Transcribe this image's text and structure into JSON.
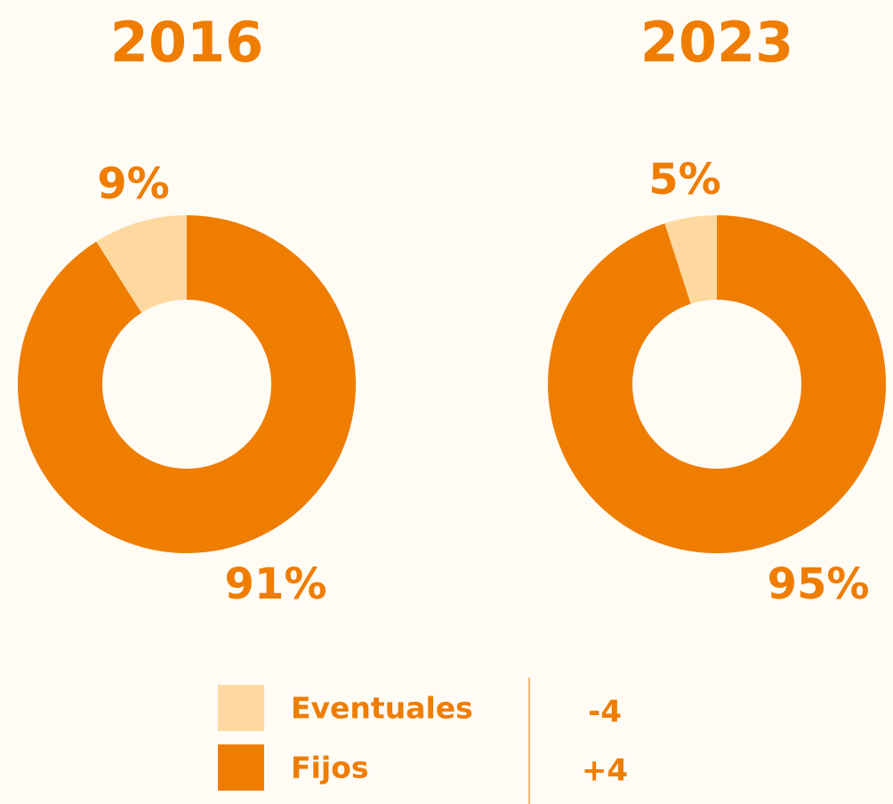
{
  "chart_data": [
    {
      "type": "pie",
      "title": "2016",
      "categories": [
        "Eventuales",
        "Fijos"
      ],
      "values": [
        9,
        91
      ],
      "value_labels": [
        "9%",
        "91%"
      ],
      "colors": [
        "#fdd9a0",
        "#ef7d00"
      ]
    },
    {
      "type": "pie",
      "title": "2023",
      "categories": [
        "Eventuales",
        "Fijos"
      ],
      "values": [
        5,
        95
      ],
      "value_labels": [
        "5%",
        "95%"
      ],
      "colors": [
        "#fdd9a0",
        "#ef7d00"
      ]
    }
  ],
  "differences": [
    "-4",
    "+4"
  ]
}
